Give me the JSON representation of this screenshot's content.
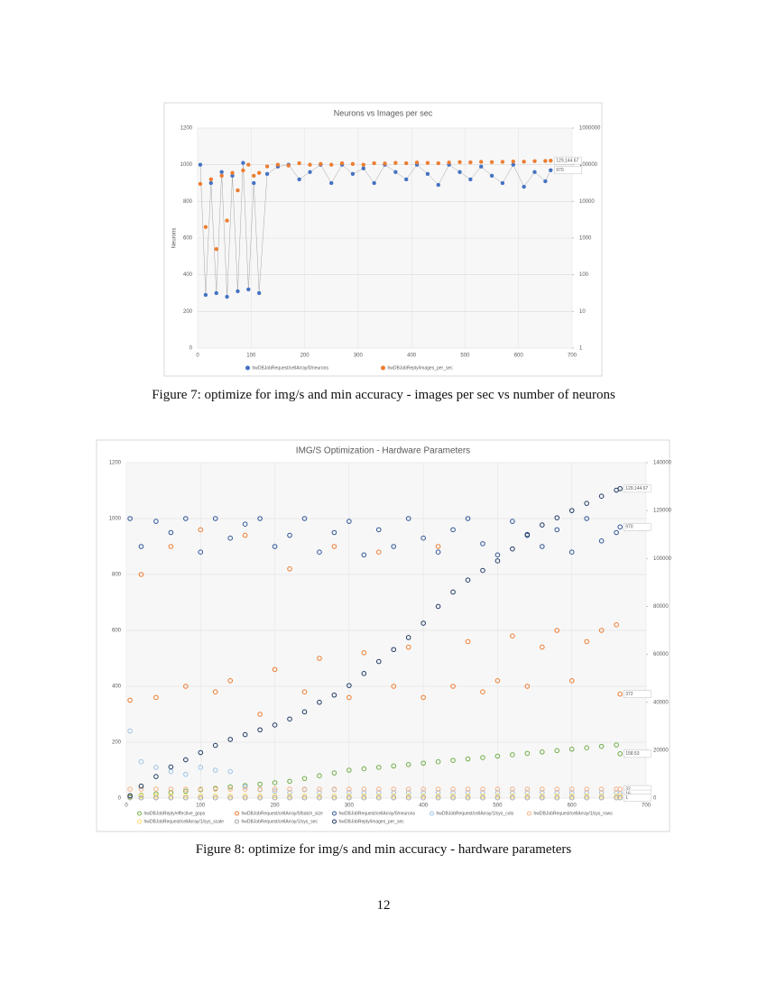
{
  "chart_data": [
    {
      "type": "scatter",
      "title": "Neurons vs Images per sec",
      "ylabel": "Neurons",
      "marker": "filled",
      "grid": true,
      "xlim": [
        0,
        700
      ],
      "xticks": [
        0,
        100,
        200,
        300,
        400,
        500,
        600,
        700
      ],
      "ylim": [
        0,
        1200
      ],
      "yticks": [
        0,
        200,
        400,
        600,
        800,
        1000,
        1200
      ],
      "y2lim": [
        1,
        1000000
      ],
      "y2ticks": [
        1,
        10,
        100,
        1000,
        10000,
        100000,
        1000000
      ],
      "y2_log": true,
      "x": [
        5,
        15,
        25,
        35,
        45,
        55,
        65,
        75,
        85,
        95,
        105,
        115,
        130,
        150,
        170,
        190,
        210,
        230,
        250,
        270,
        290,
        310,
        330,
        350,
        370,
        390,
        410,
        430,
        450,
        470,
        490,
        510,
        530,
        550,
        570,
        590,
        610,
        630,
        650,
        660
      ],
      "series": [
        {
          "name": "hwDBJobRequest/cellArray/0/neurons",
          "color": "#4472c4",
          "connect": true,
          "values": [
            1000,
            290,
            900,
            300,
            960,
            280,
            940,
            310,
            1010,
            320,
            900,
            300,
            950,
            990,
            1000,
            920,
            960,
            1000,
            900,
            1000,
            950,
            980,
            900,
            1000,
            960,
            920,
            1000,
            950,
            890,
            1000,
            960,
            920,
            990,
            940,
            900,
            1000,
            880,
            960,
            910,
            970
          ]
        },
        {
          "name": "hwDBJobReply/images_per_sec",
          "color": "#ed7d31",
          "axis": "y2",
          "values": [
            30000,
            2000,
            40000,
            500,
            50000,
            3000,
            60000,
            20000,
            70000,
            100000,
            50000,
            60000,
            90000,
            100000,
            95000,
            110000,
            100000,
            105000,
            100000,
            110000,
            105000,
            100000,
            110000,
            108000,
            112000,
            110000,
            115000,
            112000,
            110000,
            115000,
            118000,
            116000,
            120000,
            118000,
            120000,
            122000,
            121000,
            125000,
            127000,
            129144.67
          ]
        }
      ],
      "annotations": [
        "129,144.67",
        "970"
      ]
    },
    {
      "type": "scatter",
      "title": "IMG/S Optimization - Hardware Parameters",
      "marker": "open",
      "grid": true,
      "xlim": [
        0,
        700
      ],
      "xticks": [
        0,
        100,
        200,
        300,
        400,
        500,
        600,
        700
      ],
      "ylim": [
        0,
        1200
      ],
      "yticks": [
        0,
        200,
        400,
        600,
        800,
        1000,
        1200
      ],
      "y2lim": [
        0,
        140000
      ],
      "y2ticks": [
        0,
        20000,
        40000,
        60000,
        80000,
        100000,
        120000,
        140000
      ],
      "x": [
        5,
        20,
        40,
        60,
        80,
        100,
        120,
        140,
        160,
        180,
        200,
        220,
        240,
        260,
        280,
        300,
        320,
        340,
        360,
        380,
        400,
        420,
        440,
        460,
        480,
        500,
        520,
        540,
        560,
        580,
        600,
        620,
        640,
        660,
        665
      ],
      "series": [
        {
          "name": "hwDBJobReply/effective_gops",
          "color": "#70ad47",
          "values": [
            5,
            10,
            15,
            20,
            25,
            30,
            35,
            40,
            45,
            50,
            55,
            60,
            70,
            80,
            90,
            100,
            105,
            110,
            115,
            120,
            125,
            130,
            135,
            140,
            145,
            150,
            155,
            160,
            165,
            170,
            175,
            180,
            185,
            190,
            158.53
          ]
        },
        {
          "name": "hwDBJobRequest/cellArray/0/batch_size",
          "color": "#ed7d31",
          "values": [
            350,
            800,
            360,
            900,
            400,
            960,
            380,
            420,
            940,
            300,
            460,
            820,
            380,
            500,
            900,
            360,
            520,
            880,
            400,
            540,
            360,
            900,
            400,
            560,
            380,
            420,
            580,
            400,
            540,
            600,
            420,
            560,
            600,
            620,
            372
          ]
        },
        {
          "name": "hwDBJobRequest/cellArray/0/neurons",
          "color": "#2e5597",
          "values": [
            1000,
            900,
            990,
            950,
            1000,
            880,
            1000,
            930,
            980,
            1000,
            900,
            940,
            1000,
            880,
            950,
            990,
            870,
            960,
            900,
            1000,
            930,
            880,
            960,
            1000,
            910,
            870,
            990,
            940,
            900,
            960,
            880,
            1000,
            920,
            950,
            970
          ]
        },
        {
          "name": "hwDBJobRequest/cellArray/1/sys_cols",
          "color": "#9dc3e6",
          "values": [
            240,
            130,
            110,
            95,
            85,
            110,
            100,
            95,
            40,
            30,
            25,
            20,
            30,
            20,
            30,
            20,
            20,
            20,
            20,
            20,
            20,
            20,
            20,
            20,
            20,
            20,
            20,
            20,
            20,
            20,
            20,
            20,
            20,
            20,
            16
          ]
        },
        {
          "name": "hwDBJobRequest/cellArray/1/sys_rows",
          "color": "#f4b183",
          "values": [
            32,
            32,
            32,
            32,
            32,
            32,
            32,
            32,
            32,
            32,
            32,
            32,
            32,
            32,
            32,
            32,
            32,
            32,
            32,
            32,
            32,
            32,
            32,
            32,
            32,
            32,
            32,
            32,
            32,
            32,
            32,
            32,
            32,
            32,
            32
          ]
        },
        {
          "name": "hwDBJobRequest/cellArray/1/sys_scale",
          "color": "#ffd966",
          "values": [
            8,
            8,
            8,
            8,
            8,
            8,
            8,
            8,
            8,
            8,
            8,
            8,
            8,
            8,
            8,
            8,
            8,
            8,
            8,
            8,
            8,
            8,
            8,
            8,
            8,
            8,
            8,
            8,
            8,
            8,
            8,
            8,
            8,
            8,
            8
          ]
        },
        {
          "name": "hwDBJobRequest/cellArray/1/sys_sec",
          "color": "#a5a5a5",
          "values": [
            1,
            1,
            1,
            1,
            1,
            1,
            1,
            1,
            1,
            1,
            1,
            1,
            1,
            1,
            1,
            1,
            1,
            1,
            1,
            1,
            1,
            1,
            1,
            1,
            1,
            1,
            1,
            1,
            1,
            1,
            1,
            1,
            1,
            1,
            1
          ]
        },
        {
          "name": "hwDBJobReply/images_per_sec",
          "color": "#1f3864",
          "axis": "y2",
          "values": [
            1000,
            5000,
            9000,
            13000,
            16000,
            19000,
            22000,
            24500,
            26500,
            28500,
            30500,
            33000,
            36000,
            40000,
            43000,
            47000,
            52000,
            57000,
            62000,
            67000,
            73000,
            80000,
            86000,
            91000,
            95000,
            99000,
            104000,
            110000,
            114000,
            117000,
            120000,
            123000,
            126000,
            128500,
            129144.67
          ]
        }
      ],
      "annotations": [
        "129,144.67",
        "970",
        "372",
        "158.53",
        "32",
        "16",
        "1"
      ]
    }
  ],
  "captions": [
    "Figure 7: optimize for img/s and min accuracy - images per sec vs number of neurons",
    "Figure 8: optimize for img/s and min accuracy - hardware parameters"
  ],
  "page_number": "12"
}
